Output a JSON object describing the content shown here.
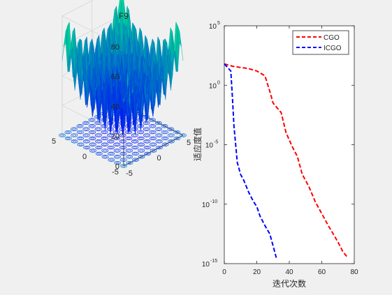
{
  "window": {
    "background": "#f0f0f0"
  },
  "chart_data": [
    {
      "type": "surface3d",
      "title": "F9",
      "xlim": [
        -5,
        5
      ],
      "ylim": [
        -5,
        5
      ],
      "zlim": [
        0,
        80
      ],
      "x_ticks": [
        "-5",
        "0",
        "5"
      ],
      "y_ticks": [
        "-5",
        "0",
        "5"
      ],
      "z_ticks": [
        "0",
        "20",
        "40",
        "60",
        "80"
      ],
      "colormap": "winter",
      "colors": {
        "low": "#0000ff",
        "high": "#00ff80"
      },
      "grid": true
    },
    {
      "type": "line",
      "ylabel": "适应度值",
      "xlabel": "迭代次数",
      "xlim": [
        0,
        80
      ],
      "ylim_log10": [
        -15,
        5
      ],
      "x_ticks": [
        "0",
        "20",
        "40",
        "60",
        "80"
      ],
      "y_ticks": [
        {
          "base": "10",
          "exp": "5",
          "value": 5
        },
        {
          "base": "10",
          "exp": "0",
          "value": 0
        },
        {
          "base": "10",
          "exp": "-5",
          "value": -5
        },
        {
          "base": "10",
          "exp": "-10",
          "value": -10
        },
        {
          "base": "10",
          "exp": "-15",
          "value": -15
        }
      ],
      "y_scale": "log",
      "legend_position": "top-right",
      "series": [
        {
          "name": "CGO",
          "color": "#ff0000",
          "style": "dashed",
          "points_log10": [
            [
              0,
              1.8
            ],
            [
              5,
              1.6
            ],
            [
              10,
              1.5
            ],
            [
              15,
              1.4
            ],
            [
              20,
              1.2
            ],
            [
              25,
              0.8
            ],
            [
              28,
              -0.5
            ],
            [
              30,
              -1.5
            ],
            [
              35,
              -2.3
            ],
            [
              38,
              -4.0
            ],
            [
              42,
              -5.2
            ],
            [
              45,
              -6.0
            ],
            [
              48,
              -7.5
            ],
            [
              52,
              -8.5
            ],
            [
              56,
              -9.8
            ],
            [
              60,
              -10.8
            ],
            [
              64,
              -11.8
            ],
            [
              70,
              -13.2
            ],
            [
              73,
              -14.0
            ],
            [
              76,
              -14.5
            ]
          ]
        },
        {
          "name": "ICGO",
          "color": "#0000ff",
          "style": "dashed",
          "points_log10": [
            [
              0,
              1.8
            ],
            [
              4,
              1.2
            ],
            [
              5,
              -1.0
            ],
            [
              6,
              -3.5
            ],
            [
              7,
              -5.0
            ],
            [
              8,
              -6.5
            ],
            [
              10,
              -7.5
            ],
            [
              12,
              -8.0
            ],
            [
              15,
              -9.0
            ],
            [
              18,
              -9.8
            ],
            [
              20,
              -10.2
            ],
            [
              22,
              -11.0
            ],
            [
              25,
              -11.8
            ],
            [
              28,
              -12.5
            ],
            [
              30,
              -13.5
            ],
            [
              32,
              -14.5
            ]
          ]
        }
      ]
    }
  ]
}
